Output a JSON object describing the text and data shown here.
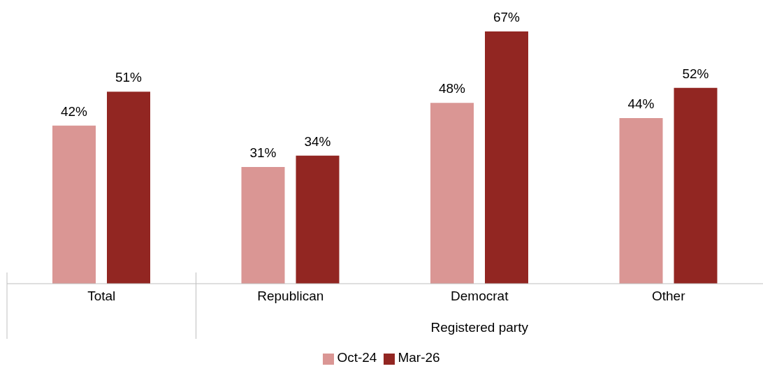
{
  "chart_data": {
    "type": "bar",
    "categories": [
      "Total",
      "Republican",
      "Democrat",
      "Other"
    ],
    "xlabel": "Registered party",
    "series": [
      {
        "name": "Oct-24",
        "color": "#da9694",
        "values": [
          42,
          31,
          48,
          44
        ],
        "value_labels": [
          "42%",
          "31%",
          "48%",
          "44%"
        ]
      },
      {
        "name": "Mar-26",
        "color": "#922622",
        "values": [
          51,
          34,
          67,
          52
        ],
        "value_labels": [
          "51%",
          "34%",
          "67%",
          "52%"
        ]
      }
    ],
    "legend": "bottom"
  }
}
